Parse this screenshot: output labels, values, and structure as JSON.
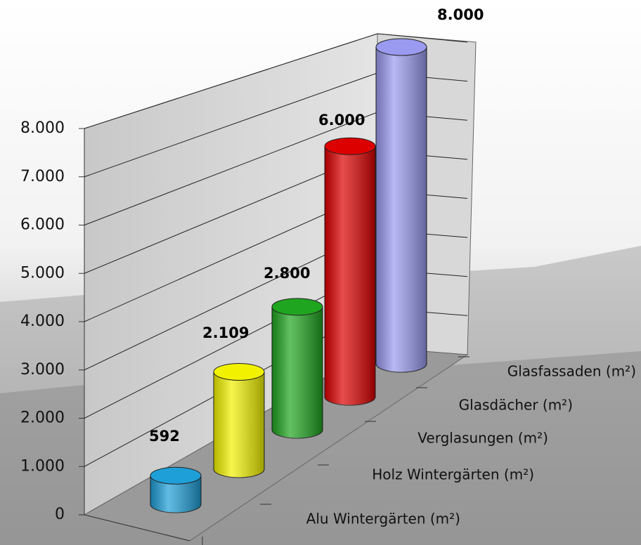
{
  "chart_data": {
    "type": "cylinder3d",
    "categories": [
      "Alu Wintergärten (m²)",
      "Holz Wintergärten (m²)",
      "Verglasungen (m²)",
      "Glasdächer (m²)",
      "Glasfassaden (m²)"
    ],
    "values": [
      592,
      2109,
      2800,
      6000,
      8000
    ],
    "value_labels": [
      "592",
      "2.109",
      "2.800",
      "6.000",
      "8.000"
    ],
    "colors": [
      "#1e9fd8",
      "#f2f200",
      "#1fa51f",
      "#dd0000",
      "#9a9af0"
    ],
    "ylim": [
      0,
      8000
    ],
    "yticks": [
      0,
      {
        "value": 1000,
        "label": "1.000"
      },
      {
        "value": 2000,
        "label": "2.000"
      },
      {
        "value": 3000,
        "label": "3.000"
      },
      {
        "value": 4000,
        "label": "4.000"
      },
      {
        "value": 5000,
        "label": "5.000"
      },
      {
        "value": 6000,
        "label": "6.000"
      },
      {
        "value": 7000,
        "label": "7.000"
      },
      {
        "value": 8000,
        "label": "8.000"
      }
    ],
    "grid": true
  }
}
